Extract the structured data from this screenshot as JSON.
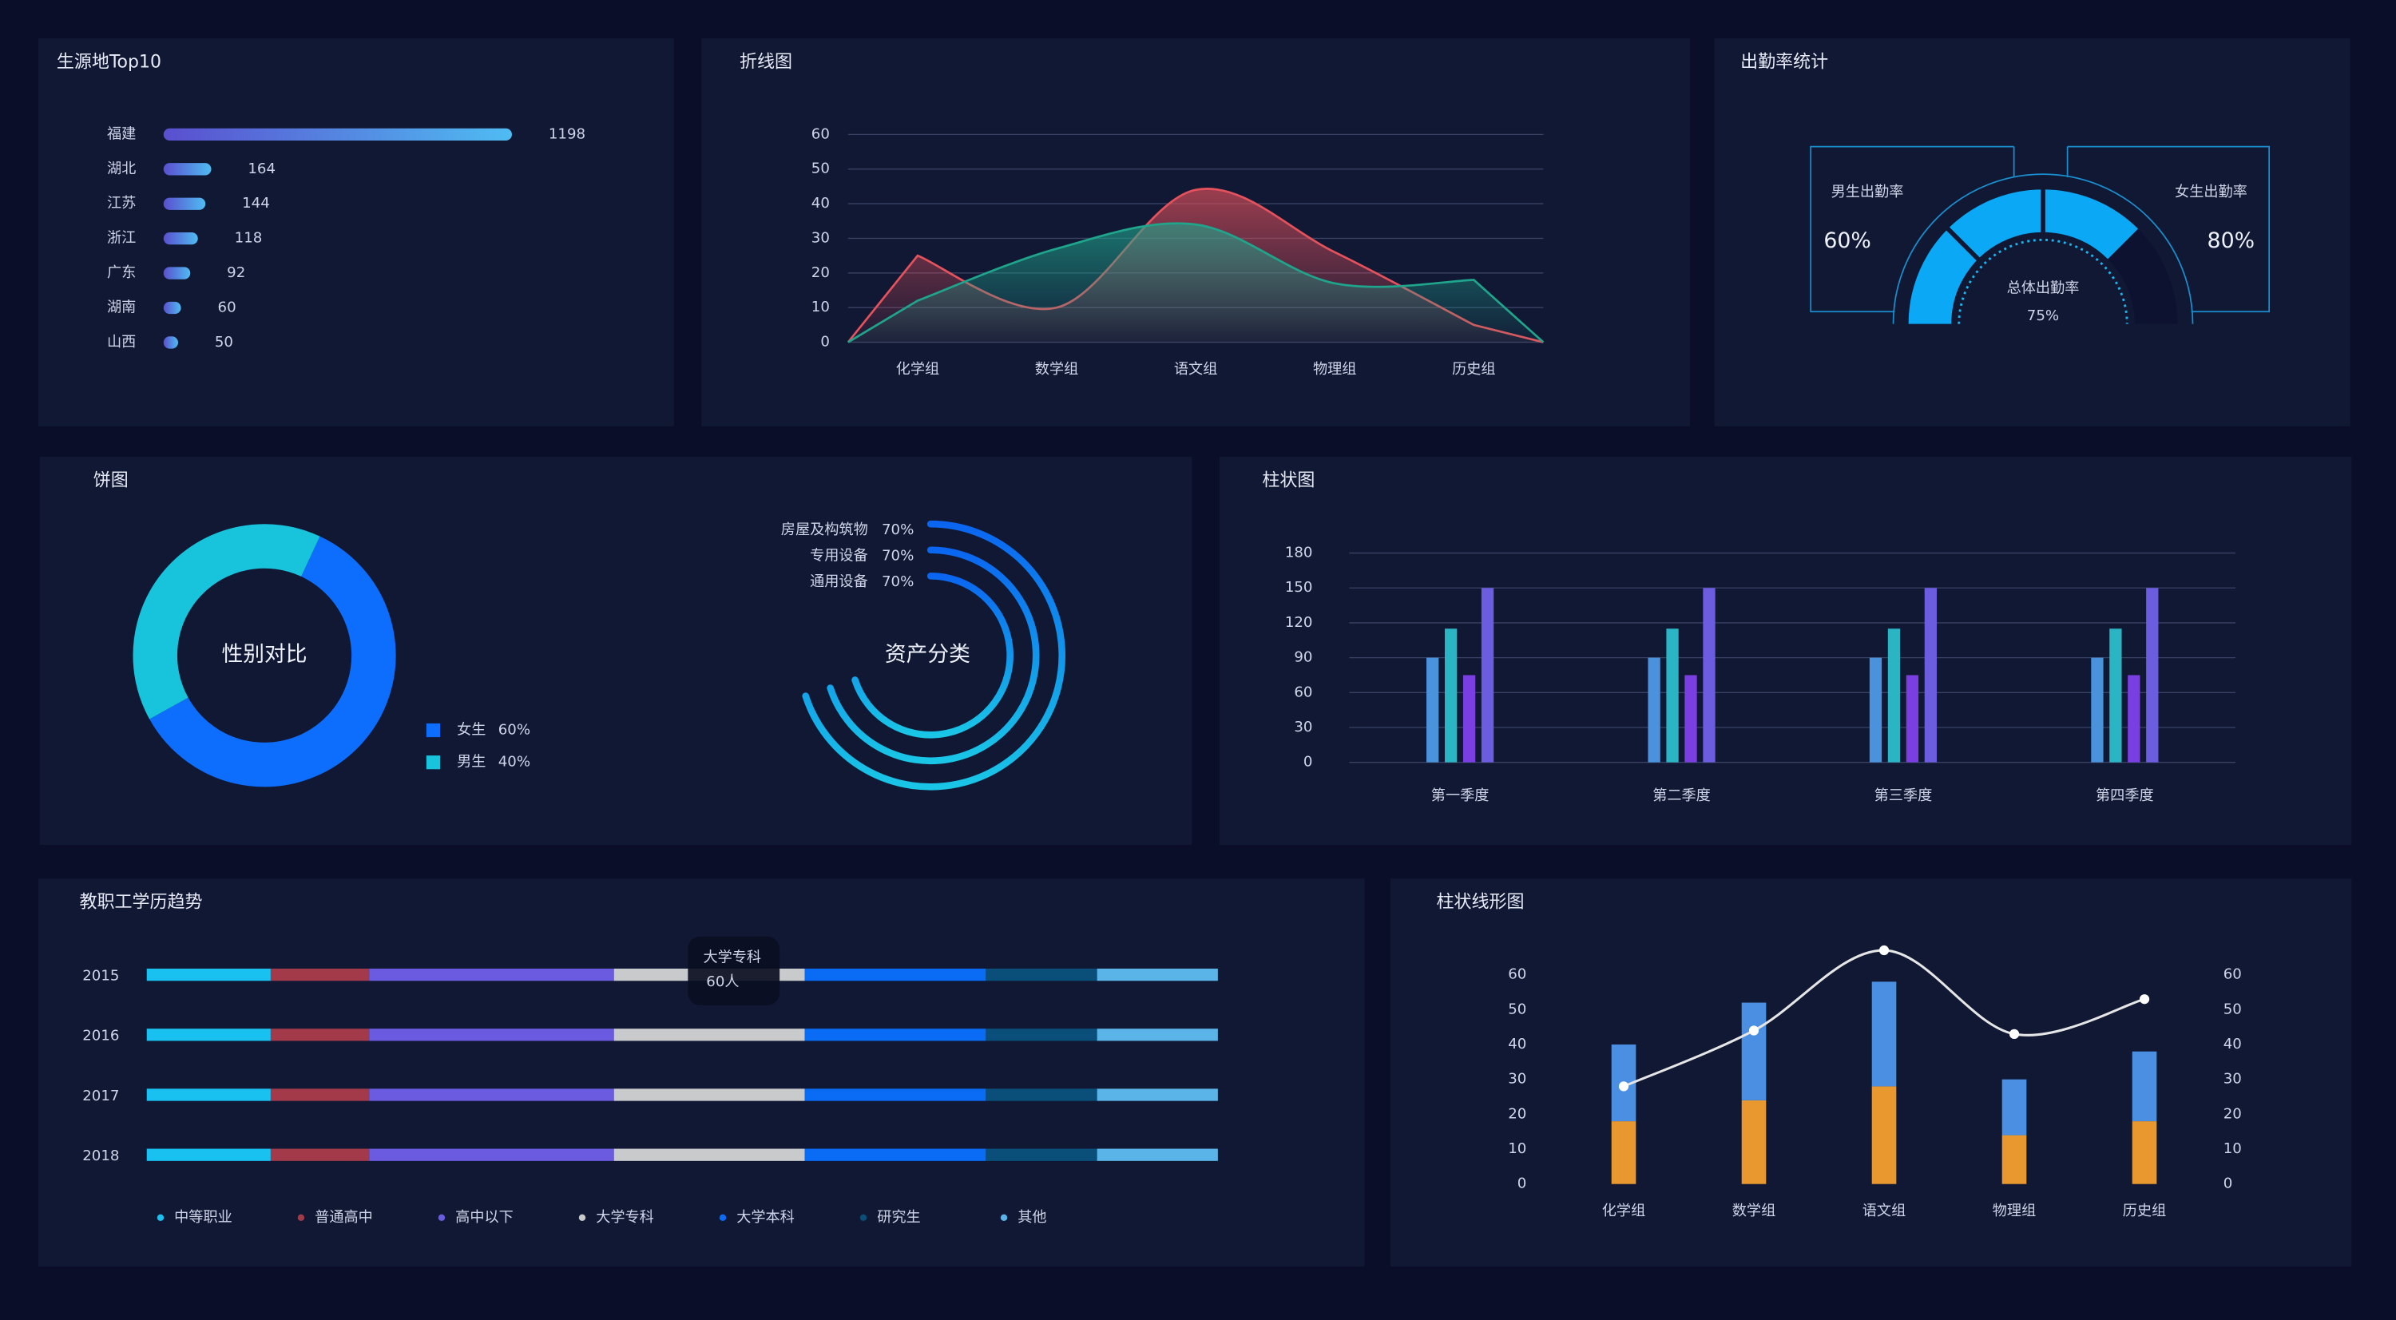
{
  "chart_data": [
    {
      "type": "bar",
      "horizontal": true,
      "title": "生源地Top10",
      "categories": [
        "福建",
        "湖北",
        "江苏",
        "浙江",
        "广东",
        "湖南",
        "山西"
      ],
      "values": [
        1198,
        164,
        144,
        118,
        92,
        60,
        50
      ],
      "colors": [
        "#5a4fcf",
        "#4fbcf2"
      ]
    },
    {
      "type": "line",
      "title": "折线图",
      "categories": [
        "化学组",
        "数学组",
        "语文组",
        "物理组",
        "历史组"
      ],
      "series": [
        {
          "color": "#e5525c",
          "values": [
            25,
            10,
            44,
            26,
            5
          ]
        },
        {
          "color": "#1fa58c",
          "values": [
            12,
            27,
            34,
            17,
            18
          ]
        }
      ],
      "ylim": [
        0,
        60
      ],
      "yticks": [
        0,
        10,
        20,
        30,
        40,
        50,
        60
      ],
      "grid": true
    },
    {
      "type": "gauge",
      "title": "出勤率统计",
      "categories": [
        "男生出勤率",
        "女生出勤率",
        "总体出勤率"
      ],
      "values": [
        60,
        80,
        75
      ],
      "value_labels": [
        "60%",
        "80%",
        "75%"
      ],
      "color": "#0aa8f5"
    },
    {
      "type": "pie",
      "title": "饼图",
      "center_label": "性别对比",
      "categories": [
        "女生",
        "男生"
      ],
      "values": [
        60,
        40
      ],
      "value_labels": [
        "60%",
        "40%"
      ],
      "colors": [
        "#0d6efd",
        "#18c3dc"
      ]
    },
    {
      "type": "radial-bar",
      "center_label": "资产分类",
      "categories": [
        "房屋及构筑物",
        "专用设备",
        "通用设备"
      ],
      "values": [
        70,
        70,
        70
      ],
      "value_labels": [
        "70%",
        "70%",
        "70%"
      ],
      "colors": [
        "#0a66f0",
        "#19c6e6"
      ]
    },
    {
      "type": "bar",
      "title": "柱状图",
      "categories": [
        "第一季度",
        "第二季度",
        "第三季度",
        "第四季度"
      ],
      "series": [
        {
          "color": "#4a93dc",
          "values": [
            90,
            90,
            90,
            90
          ]
        },
        {
          "color": "#2bb5c4",
          "values": [
            115,
            115,
            115,
            115
          ]
        },
        {
          "color": "#7a3fe0",
          "values": [
            75,
            75,
            75,
            75
          ]
        },
        {
          "color": "#6c5ce0",
          "values": [
            150,
            150,
            150,
            150
          ]
        }
      ],
      "ylim": [
        0,
        180
      ],
      "yticks": [
        0,
        30,
        60,
        90,
        120,
        150,
        180
      ],
      "grid": true
    },
    {
      "type": "stacked-bar",
      "horizontal": true,
      "title": "教职工学历趋势",
      "categories": [
        "2015",
        "2016",
        "2017",
        "2018"
      ],
      "series": [
        {
          "name": "中等职业",
          "color": "#19c1f0",
          "values": [
            39,
            39,
            39,
            39
          ]
        },
        {
          "name": "普通高中",
          "color": "#a33a4a",
          "values": [
            31,
            31,
            31,
            31
          ]
        },
        {
          "name": "高中以下",
          "color": "#6b5be0",
          "values": [
            77,
            77,
            77,
            77
          ]
        },
        {
          "name": "大学专科",
          "color": "#c8cacc",
          "values": [
            60,
            60,
            60,
            60
          ]
        },
        {
          "name": "大学本科",
          "color": "#0a6cf5",
          "values": [
            57,
            57,
            57,
            57
          ]
        },
        {
          "name": "研究生",
          "color": "#0a4f7a",
          "values": [
            35,
            35,
            35,
            35
          ]
        },
        {
          "name": "其他",
          "color": "#5ab4e8",
          "values": [
            38,
            38,
            38,
            38
          ]
        }
      ],
      "tooltip": {
        "name": "大学专科",
        "label": "60人"
      },
      "legend": "bottom"
    },
    {
      "type": "bar-line",
      "title": "柱状线形图",
      "categories": [
        "化学组",
        "数学组",
        "语文组",
        "物理组",
        "历史组"
      ],
      "series": [
        {
          "color": "#e8982f",
          "values": [
            18,
            24,
            28,
            14,
            18
          ]
        },
        {
          "color": "#4a8fe2",
          "values": [
            22,
            28,
            30,
            16,
            20
          ]
        },
        {
          "type": "line",
          "axis": "y2",
          "color": "#e6e6e6",
          "values": [
            28,
            44,
            67,
            43,
            53
          ]
        }
      ],
      "ylim": [
        0,
        60
      ],
      "yticks": [
        0,
        10,
        20,
        30,
        40,
        50,
        60
      ],
      "y2lim": [
        0,
        60
      ],
      "y2ticks": [
        0,
        10,
        20,
        30,
        40,
        50,
        60
      ]
    }
  ]
}
